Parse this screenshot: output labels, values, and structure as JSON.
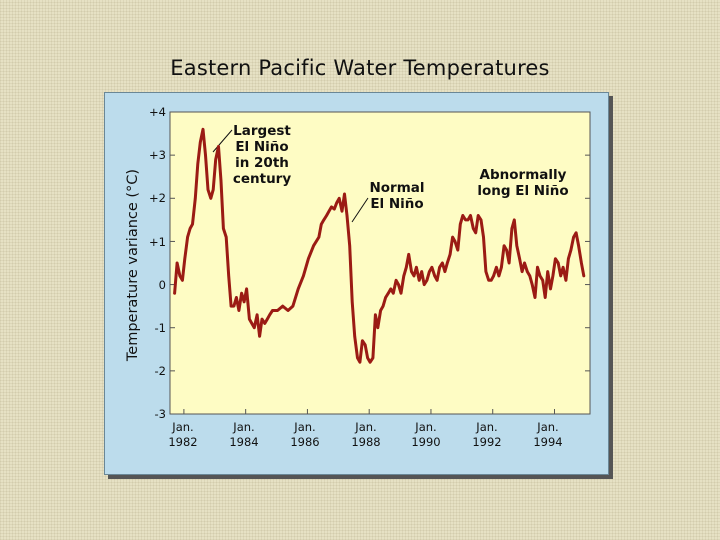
{
  "chart_data": {
    "type": "line",
    "title": "Eastern Pacific Water Temperatures",
    "xlabel": "",
    "ylabel": "Temperature variance (°C)",
    "ylim": [
      -3,
      4
    ],
    "xlim": [
      1981.55,
      1995.15
    ],
    "grid": false,
    "y_tick_labels": [
      "+4",
      "+3",
      "+2",
      "+1",
      "0",
      "-1",
      "-2",
      "-3"
    ],
    "y_tick_values": [
      4,
      3,
      2,
      1,
      0,
      -1,
      -2,
      -3
    ],
    "x_ticks": [
      {
        "line1": "Jan.",
        "line2": "1982",
        "value": 1982
      },
      {
        "line1": "Jan.",
        "line2": "1984",
        "value": 1984
      },
      {
        "line1": "Jan.",
        "line2": "1986",
        "value": 1986
      },
      {
        "line1": "Jan.",
        "line2": "1988",
        "value": 1988
      },
      {
        "line1": "Jan.",
        "line2": "1990",
        "value": 1990
      },
      {
        "line1": "Jan.",
        "line2": "1992",
        "value": 1992
      },
      {
        "line1": "Jan.",
        "line2": "1994",
        "value": 1994
      }
    ],
    "series": [
      {
        "name": "Temperature variance",
        "color": "#9b1b14",
        "x": [
          1981.7,
          1981.78,
          1981.87,
          1981.95,
          1982.03,
          1982.12,
          1982.2,
          1982.28,
          1982.37,
          1982.45,
          1982.53,
          1982.62,
          1982.7,
          1982.78,
          1982.87,
          1982.95,
          1983.03,
          1983.12,
          1983.2,
          1983.28,
          1983.37,
          1983.45,
          1983.53,
          1983.62,
          1983.7,
          1983.78,
          1983.87,
          1983.95,
          1984.03,
          1984.12,
          1984.2,
          1984.28,
          1984.37,
          1984.45,
          1984.53,
          1984.62,
          1984.7,
          1984.78,
          1984.87,
          1985.03,
          1985.2,
          1985.37,
          1985.53,
          1985.7,
          1985.87,
          1986.03,
          1986.2,
          1986.37,
          1986.45,
          1986.53,
          1986.62,
          1986.7,
          1986.78,
          1986.87,
          1986.95,
          1987.03,
          1987.12,
          1987.2,
          1987.28,
          1987.37,
          1987.45,
          1987.53,
          1987.62,
          1987.7,
          1987.78,
          1987.87,
          1987.95,
          1988.03,
          1988.12,
          1988.2,
          1988.28,
          1988.37,
          1988.45,
          1988.53,
          1988.62,
          1988.7,
          1988.78,
          1988.87,
          1988.95,
          1989.03,
          1989.12,
          1989.2,
          1989.28,
          1989.37,
          1989.45,
          1989.53,
          1989.62,
          1989.7,
          1989.78,
          1989.87,
          1989.95,
          1990.03,
          1990.12,
          1990.2,
          1990.28,
          1990.37,
          1990.45,
          1990.53,
          1990.62,
          1990.7,
          1990.78,
          1990.87,
          1990.95,
          1991.03,
          1991.12,
          1991.2,
          1991.28,
          1991.37,
          1991.45,
          1991.53,
          1991.62,
          1991.7,
          1991.78,
          1991.87,
          1991.95,
          1992.03,
          1992.12,
          1992.2,
          1992.28,
          1992.37,
          1992.45,
          1992.53,
          1992.62,
          1992.7,
          1992.78,
          1992.87,
          1992.95,
          1993.03,
          1993.12,
          1993.2,
          1993.28,
          1993.37,
          1993.45,
          1993.53,
          1993.62,
          1993.7,
          1993.78,
          1993.87,
          1993.95,
          1994.03,
          1994.12,
          1994.2,
          1994.28,
          1994.37,
          1994.45,
          1994.53,
          1994.62,
          1994.7,
          1994.78,
          1994.87,
          1994.95
        ],
        "y": [
          -0.2,
          0.5,
          0.2,
          0.1,
          0.6,
          1.1,
          1.3,
          1.4,
          2.0,
          2.8,
          3.3,
          3.6,
          3.0,
          2.2,
          2.0,
          2.2,
          2.9,
          3.2,
          2.4,
          1.3,
          1.1,
          0.2,
          -0.5,
          -0.5,
          -0.3,
          -0.6,
          -0.2,
          -0.4,
          -0.1,
          -0.8,
          -0.9,
          -1.0,
          -0.7,
          -1.2,
          -0.8,
          -0.9,
          -0.8,
          -0.7,
          -0.6,
          -0.6,
          -0.5,
          -0.6,
          -0.5,
          -0.1,
          0.2,
          0.6,
          0.9,
          1.1,
          1.4,
          1.5,
          1.6,
          1.7,
          1.8,
          1.75,
          1.9,
          2.0,
          1.7,
          2.1,
          1.6,
          0.9,
          -0.4,
          -1.2,
          -1.7,
          -1.8,
          -1.3,
          -1.4,
          -1.7,
          -1.8,
          -1.7,
          -0.7,
          -1.0,
          -0.6,
          -0.5,
          -0.3,
          -0.2,
          -0.1,
          -0.2,
          0.1,
          0.0,
          -0.2,
          0.2,
          0.4,
          0.7,
          0.3,
          0.2,
          0.4,
          0.1,
          0.3,
          0.0,
          0.1,
          0.3,
          0.4,
          0.2,
          0.1,
          0.4,
          0.5,
          0.3,
          0.5,
          0.7,
          1.1,
          1.0,
          0.8,
          1.4,
          1.6,
          1.5,
          1.5,
          1.6,
          1.3,
          1.2,
          1.6,
          1.5,
          1.1,
          0.3,
          0.1,
          0.1,
          0.2,
          0.4,
          0.2,
          0.4,
          0.9,
          0.8,
          0.5,
          1.3,
          1.5,
          0.9,
          0.6,
          0.3,
          0.5,
          0.3,
          0.2,
          0.0,
          -0.3,
          0.4,
          0.2,
          0.1,
          -0.3,
          0.3,
          -0.1,
          0.2,
          0.6,
          0.5,
          0.2,
          0.4,
          0.1,
          0.6,
          0.8,
          1.1,
          1.2,
          0.9,
          0.5,
          0.2
        ]
      }
    ],
    "annotations": [
      {
        "id": "largest",
        "lines": [
          "Largest",
          "El Niño",
          "in 20th",
          "century"
        ]
      },
      {
        "id": "normal",
        "lines": [
          "Normal",
          "El Niño"
        ]
      },
      {
        "id": "abnormal",
        "lines": [
          "Abnormally",
          "long El Niño"
        ]
      }
    ]
  }
}
